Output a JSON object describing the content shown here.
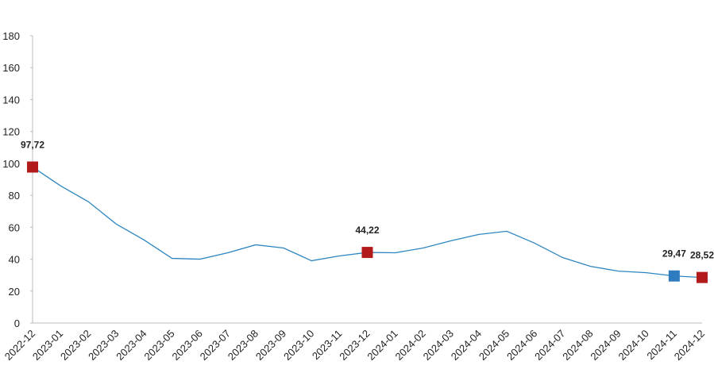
{
  "chart_data": {
    "type": "line",
    "categories": [
      "2022-12",
      "2023-01",
      "2023-02",
      "2023-03",
      "2023-04",
      "2023-05",
      "2023-06",
      "2023-07",
      "2023-08",
      "2023-09",
      "2023-10",
      "2023-11",
      "2023-12",
      "2024-01",
      "2024-02",
      "2024-03",
      "2024-04",
      "2024-05",
      "2024-06",
      "2024-07",
      "2024-08",
      "2024-09",
      "2024-10",
      "2024-11",
      "2024-12"
    ],
    "series": [
      {
        "color": "#2e86c1",
        "values": [
          97.72,
          86,
          76,
          62,
          52,
          40.5,
          40,
          44,
          49,
          47,
          39,
          42,
          44.22,
          44,
          47,
          51.5,
          55.5,
          57.5,
          50,
          41,
          35.5,
          32.5,
          31.5,
          29.47,
          28.52
        ],
        "value_labels": [
          "97,72",
          null,
          null,
          null,
          null,
          null,
          null,
          null,
          null,
          null,
          null,
          null,
          "44,22",
          null,
          null,
          null,
          null,
          null,
          null,
          null,
          null,
          null,
          null,
          "29,47",
          "28,52"
        ],
        "marker_colors": [
          "#b11b1b",
          null,
          null,
          null,
          null,
          null,
          null,
          null,
          null,
          null,
          null,
          null,
          "#b11b1b",
          null,
          null,
          null,
          null,
          null,
          null,
          null,
          null,
          null,
          null,
          "#2e7bbf",
          "#b11b1b"
        ]
      }
    ],
    "ylim": [
      0,
      180
    ],
    "yticks": [
      0,
      20,
      40,
      60,
      80,
      100,
      120,
      140,
      160,
      180
    ],
    "grid": false
  }
}
